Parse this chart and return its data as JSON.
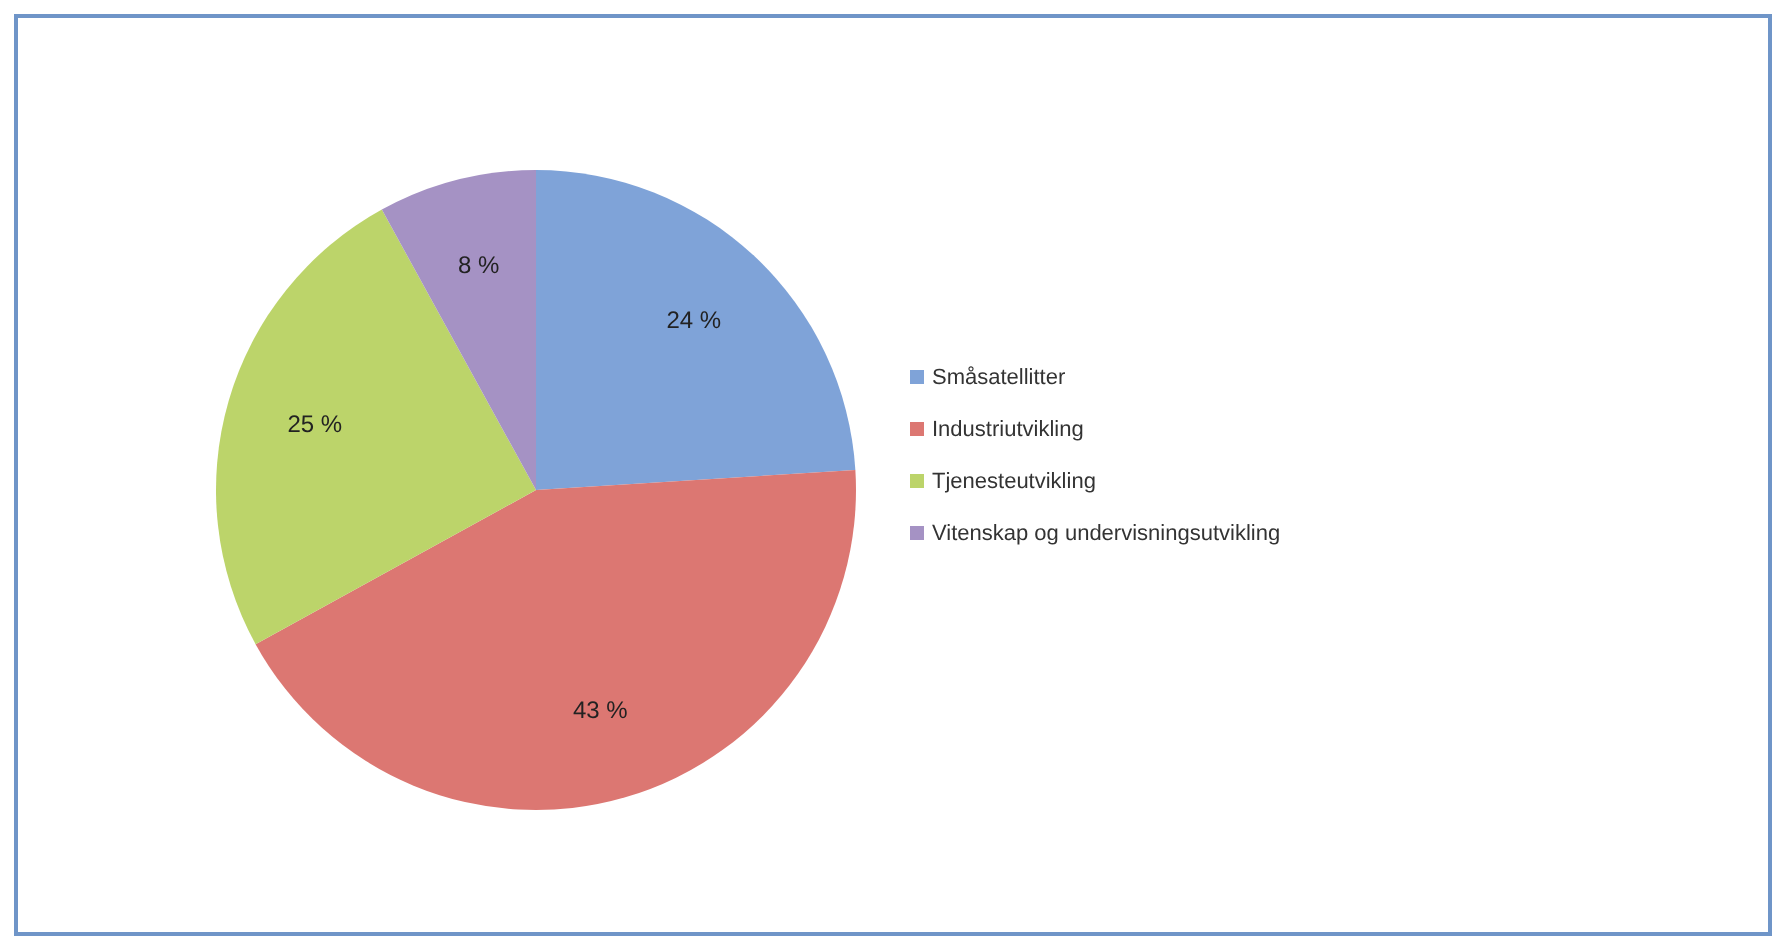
{
  "chart_data": {
    "type": "pie",
    "categories": [
      "Småsatellitter",
      "Industriutvikling",
      "Tjenesteutvikling",
      "Vitenskap og undervisningsutvikling"
    ],
    "values": [
      24,
      43,
      25,
      8
    ],
    "colors": [
      "#7fa3d8",
      "#dc7772",
      "#bcd46a",
      "#a592c4"
    ],
    "value_labels": [
      "24 %",
      "43 %",
      "25 %",
      "8 %"
    ],
    "legend": "right"
  }
}
